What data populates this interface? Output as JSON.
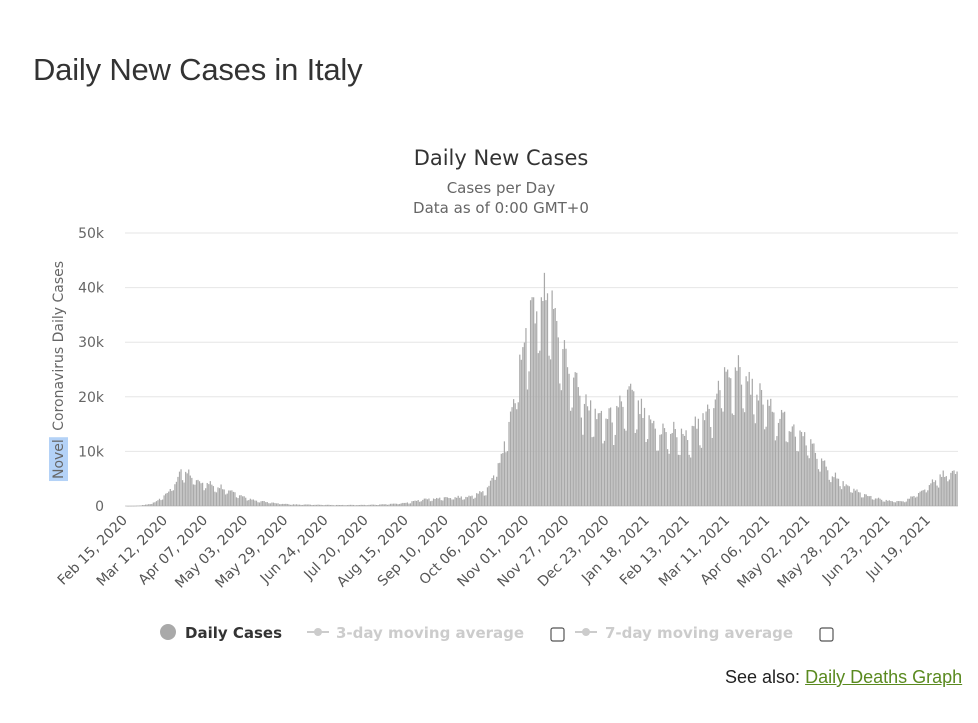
{
  "page": {
    "heading": "Daily New Cases in Italy",
    "see_also_prefix": "See also:",
    "see_also_link": "Daily Deaths Graph"
  },
  "colors": {
    "bar": "#a9a9a9",
    "legend_active": "#333333",
    "legend_inactive": "#cccccc",
    "link": "#5a8a1f",
    "grid": "#e6e6e6",
    "axis_selection_highlight": "#b4d2f7"
  },
  "chart_data": {
    "type": "bar",
    "title": "Daily New Cases",
    "subtitle_line1": "Cases per Day",
    "subtitle_line2": "Data as of 0:00 GMT+0",
    "ylabel_highlighted": "Novel",
    "ylabel_rest": "Coronavirus Daily Cases",
    "xlabel": "",
    "x_start": "2020-02-15",
    "x_end": "2021-08-08",
    "ylim": [
      0,
      50000
    ],
    "yticks": [
      0,
      10000,
      20000,
      30000,
      40000,
      50000
    ],
    "ytick_labels": [
      "0",
      "10k",
      "20k",
      "30k",
      "40k",
      "50k"
    ],
    "xtick_labels": [
      "Feb 15, 2020",
      "Mar 12, 2020",
      "Apr 07, 2020",
      "May 03, 2020",
      "May 29, 2020",
      "Jun 24, 2020",
      "Jul 20, 2020",
      "Aug 15, 2020",
      "Sep 10, 2020",
      "Oct 06, 2020",
      "Nov 01, 2020",
      "Nov 27, 2020",
      "Dec 23, 2020",
      "Jan 18, 2021",
      "Feb 13, 2021",
      "Mar 11, 2021",
      "Apr 06, 2021",
      "May 02, 2021",
      "May 28, 2021",
      "Jun 23, 2021",
      "Jul 19, 2021"
    ],
    "grid": true,
    "legend_position": "bottom",
    "legend": [
      {
        "label": "Daily Cases",
        "active": true,
        "has_checkbox": false
      },
      {
        "label": "3-day moving average",
        "active": false,
        "has_checkbox": true
      },
      {
        "label": "7-day moving average",
        "active": false,
        "has_checkbox": true
      }
    ],
    "series": [
      {
        "name": "Daily Cases",
        "interval_days": 1,
        "keyframes": [
          [
            "2020-02-15",
            0
          ],
          [
            "2020-02-21",
            20
          ],
          [
            "2020-02-29",
            250
          ],
          [
            "2020-03-06",
            800
          ],
          [
            "2020-03-13",
            2500
          ],
          [
            "2020-03-19",
            4500
          ],
          [
            "2020-03-21",
            6200
          ],
          [
            "2020-03-27",
            5800
          ],
          [
            "2020-04-03",
            4600
          ],
          [
            "2020-04-10",
            4000
          ],
          [
            "2020-04-17",
            3500
          ],
          [
            "2020-04-24",
            2800
          ],
          [
            "2020-05-01",
            1800
          ],
          [
            "2020-05-10",
            1000
          ],
          [
            "2020-05-20",
            600
          ],
          [
            "2020-06-01",
            300
          ],
          [
            "2020-06-15",
            250
          ],
          [
            "2020-07-01",
            180
          ],
          [
            "2020-07-20",
            200
          ],
          [
            "2020-08-01",
            300
          ],
          [
            "2020-08-15",
            550
          ],
          [
            "2020-08-25",
            1200
          ],
          [
            "2020-09-10",
            1500
          ],
          [
            "2020-09-25",
            1700
          ],
          [
            "2020-10-06",
            2800
          ],
          [
            "2020-10-10",
            5000
          ],
          [
            "2020-10-17",
            10000
          ],
          [
            "2020-10-24",
            19000
          ],
          [
            "2020-10-31",
            31000
          ],
          [
            "2020-11-07",
            37000
          ],
          [
            "2020-11-13",
            40000
          ],
          [
            "2020-11-20",
            36000
          ],
          [
            "2020-11-27",
            27000
          ],
          [
            "2020-12-04",
            22000
          ],
          [
            "2020-12-11",
            18500
          ],
          [
            "2020-12-20",
            16000
          ],
          [
            "2020-12-31",
            17000
          ],
          [
            "2021-01-07",
            21000
          ],
          [
            "2021-01-15",
            17000
          ],
          [
            "2021-01-25",
            14000
          ],
          [
            "2021-02-05",
            13500
          ],
          [
            "2021-02-15",
            13000
          ],
          [
            "2021-02-25",
            16000
          ],
          [
            "2021-03-05",
            21000
          ],
          [
            "2021-03-12",
            25000
          ],
          [
            "2021-03-19",
            24500
          ],
          [
            "2021-03-27",
            22500
          ],
          [
            "2021-04-05",
            19000
          ],
          [
            "2021-04-15",
            16500
          ],
          [
            "2021-04-25",
            14000
          ],
          [
            "2021-05-03",
            12000
          ],
          [
            "2021-05-10",
            9000
          ],
          [
            "2021-05-20",
            5500
          ],
          [
            "2021-05-28",
            3800
          ],
          [
            "2021-06-05",
            2500
          ],
          [
            "2021-06-15",
            1500
          ],
          [
            "2021-06-25",
            900
          ],
          [
            "2021-07-05",
            900
          ],
          [
            "2021-07-12",
            2000
          ],
          [
            "2021-07-19",
            3500
          ],
          [
            "2021-07-26",
            5000
          ],
          [
            "2021-08-01",
            6000
          ],
          [
            "2021-08-08",
            6500
          ]
        ]
      }
    ]
  }
}
